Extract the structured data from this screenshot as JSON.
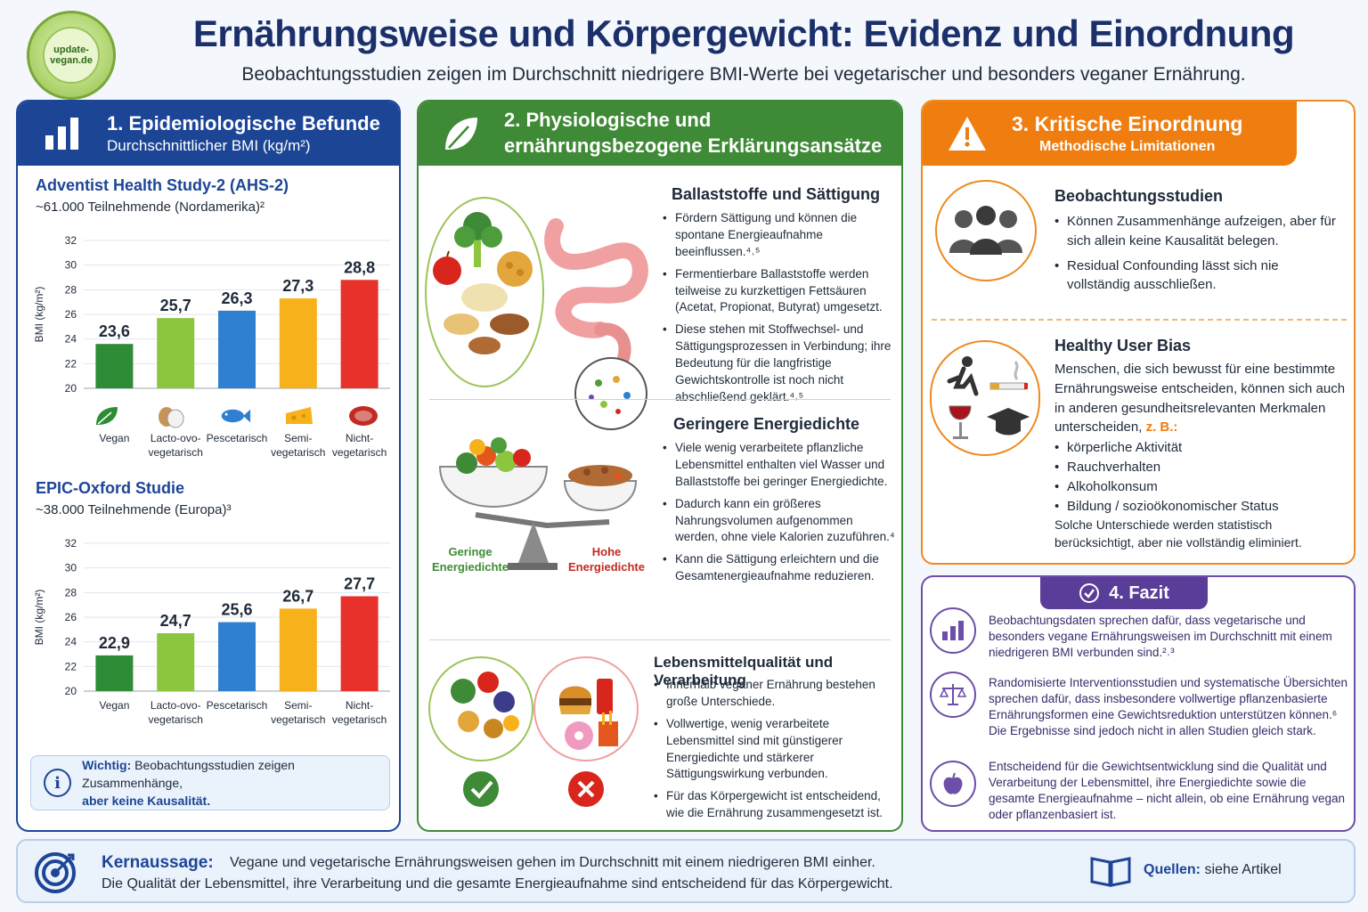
{
  "logo": {
    "text": "update-vegan.de"
  },
  "header": {
    "title": "Ernährungsweise und Körpergewicht: Evidenz und Einordnung",
    "subtitle": "Beobachtungsstudien zeigen im Durchschnitt niedrigere BMI-Werte bei vegetarischer und besonders veganer Ernährung."
  },
  "panel1": {
    "title": "1. Epidemiologische Befunde",
    "subtitle": "Durchschnittlicher BMI (kg/m²)",
    "info_label": "Wichtig:",
    "info_text_a": "Beobachtungsstudien zeigen Zusammenhänge,",
    "info_text_b": "aber keine Kausalität."
  },
  "chart_data": [
    {
      "type": "bar",
      "title": "Adventist Health Study-2 (AHS-2)",
      "subtitle": "~61.000 Teilnehmende (Nordamerika)²",
      "categories": [
        "Vegan",
        "Lacto-ovo-vegetarisch",
        "Pescetarisch",
        "Semi-vegetarisch",
        "Nicht-vegetarisch"
      ],
      "category_lines": [
        [
          "Vegan"
        ],
        [
          "Lacto-ovo-",
          "vegetarisch"
        ],
        [
          "Pescetarisch"
        ],
        [
          "Semi-",
          "vegetarisch"
        ],
        [
          "Nicht-",
          "vegetarisch"
        ]
      ],
      "values": [
        23.6,
        25.7,
        26.3,
        27.3,
        28.8
      ],
      "value_labels": [
        "23,6",
        "25,7",
        "26,3",
        "27,3",
        "28,8"
      ],
      "colors": [
        "#2e8b36",
        "#8cc63f",
        "#2f80d1",
        "#f7b21b",
        "#e8312a"
      ],
      "ylabel": "BMI (kg/m²)",
      "ylim": [
        20,
        32
      ],
      "yticks": [
        20,
        22,
        24,
        26,
        28,
        30,
        32
      ]
    },
    {
      "type": "bar",
      "title": "EPIC-Oxford Studie",
      "subtitle": "~38.000 Teilnehmende (Europa)³",
      "categories": [
        "Vegan",
        "Lacto-ovo-vegetarisch",
        "Pescetarisch",
        "Semi-vegetarisch",
        "Nicht-vegetarisch"
      ],
      "category_lines": [
        [
          "Vegan"
        ],
        [
          "Lacto-ovo-",
          "vegetarisch"
        ],
        [
          "Pescetarisch"
        ],
        [
          "Semi-",
          "vegetarisch"
        ],
        [
          "Nicht-",
          "vegetarisch"
        ]
      ],
      "values": [
        22.9,
        24.7,
        25.6,
        26.7,
        27.7
      ],
      "value_labels": [
        "22,9",
        "24,7",
        "25,6",
        "26,7",
        "27,7"
      ],
      "colors": [
        "#2e8b36",
        "#8cc63f",
        "#2f80d1",
        "#f7b21b",
        "#e8312a"
      ],
      "ylabel": "BMI (kg/m²)",
      "ylim": [
        20,
        32
      ],
      "yticks": [
        20,
        22,
        24,
        26,
        28,
        30,
        32
      ]
    }
  ],
  "panel2": {
    "title_line1": "2. Physiologische und",
    "title_line2": "ernährungsbezogene Erklärungsansätze",
    "sections": [
      {
        "title": "Ballaststoffe und Sättigung",
        "bullets": [
          "Fördern Sättigung und können die spontane Energieaufnahme beeinflussen.⁴˒⁵",
          "Fermentierbare Ballaststoffe werden teilweise zu kurzkettigen Fettsäuren (Acetat, Propionat, Butyrat) umgesetzt.",
          "Diese stehen mit Stoffwechsel- und Sättigungsprozessen in Verbindung; ihre Bedeutung für die langfristige Gewichtskontrolle ist noch nicht abschließend geklärt.⁴˒⁵"
        ]
      },
      {
        "title": "Geringere Energiedichte",
        "bullets": [
          "Viele wenig verarbeitete pflanzliche Lebensmittel enthalten viel Wasser und Ballaststoffe bei geringer Energiedichte.",
          "Dadurch kann ein größeres Nahrungsvolumen aufgenommen werden, ohne viele Kalorien zuzuführen.⁴",
          "Kann die Sättigung erleichtern und die Gesamtenergieaufnahme reduzieren."
        ],
        "left_label": "Geringe Energiedichte",
        "right_label": "Hohe Energiedichte"
      },
      {
        "title": "Lebensmittelqualität und Verarbeitung",
        "bullets": [
          "Innerhalb veganer Ernährung bestehen große Unterschiede.",
          "Vollwertige, wenig verarbeitete Lebensmittel sind mit günstigerer Energiedichte und stärkerer Sättigungswirkung verbunden.",
          "Für das Körpergewicht ist entscheidend, wie die Ernährung zusammengesetzt ist."
        ]
      }
    ]
  },
  "panel3": {
    "title": "3. Kritische Einordnung",
    "subtitle": "Methodische Limitationen",
    "obs_title": "Beobachtungsstudien",
    "obs_bullets": [
      "Können Zusammenhänge aufzeigen, aber für sich allein keine Kausalität belegen.",
      "Residual Confounding lässt sich nie vollständig ausschließen."
    ],
    "bias_title": "Healthy User Bias",
    "bias_text": "Menschen, die sich bewusst für eine bestimmte Ernährungsweise entscheiden, können sich auch in anderen gesundheitsrelevanten Merkmalen unterscheiden,",
    "bias_example": "z. B.:",
    "bias_bullets": [
      "körperliche Aktivität",
      "Rauchverhalten",
      "Alkoholkonsum",
      "Bildung / sozioökonomischer Status"
    ],
    "bias_footer": "Solche Unterschiede werden statistisch berücksichtigt, aber nie vollständig eliminiert."
  },
  "panel4": {
    "title": "4. Fazit",
    "items": [
      "Beobachtungsdaten sprechen dafür, dass vegetarische und besonders vegane Ernährungsweisen im Durchschnitt mit einem niedrigeren BMI verbunden sind.²˒³",
      "Randomisierte Interventionsstudien und systematische Übersichten sprechen dafür, dass insbesondere vollwertige pflanzenbasierte Ernährungsformen eine Gewichtsreduktion unterstützen können.⁶",
      "Die Ergebnisse sind jedoch nicht in allen Studien gleich stark.",
      "Entscheidend für die Gewichtsentwicklung sind die Qualität und Verarbeitung der Lebensmittel, ihre Energiedichte sowie die gesamte Energieaufnahme – nicht allein, ob eine Ernährung vegan oder pflanzenbasiert ist."
    ]
  },
  "footer": {
    "key_label": "Kernaussage:",
    "line1": "Vegane und vegetarische Ernährungsweisen gehen im Durchschnitt mit einem niedrigeren BMI einher.",
    "line2": "Die Qualität der Lebensmittel, ihre Verarbeitung und die gesamte Energieaufnahme sind entscheidend für das Körpergewicht.",
    "sources_label": "Quellen:",
    "sources_text": "siehe Artikel"
  }
}
